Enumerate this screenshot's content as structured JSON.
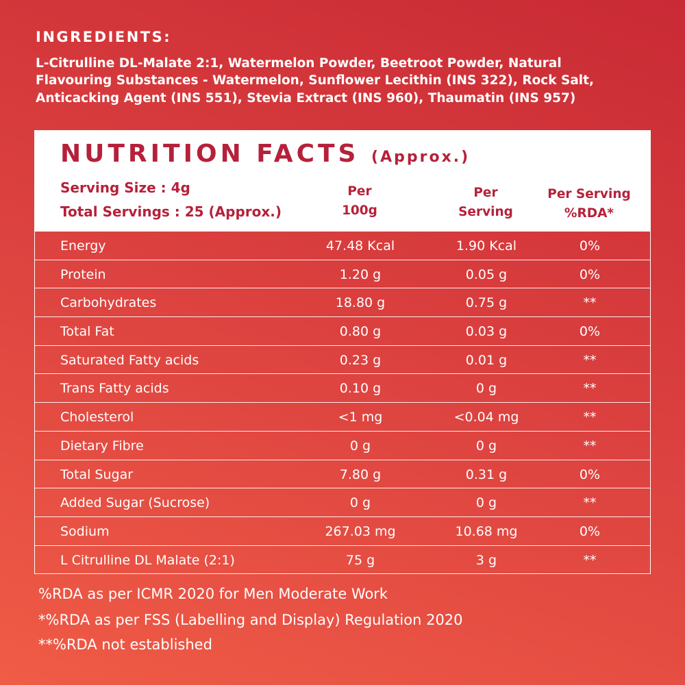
{
  "ingredients": {
    "heading": "INGREDIENTS:",
    "lines": [
      "L-Citrulline DL-Malate 2:1, Watermelon Powder, Beetroot Powder, Natural",
      "Flavouring Substances - Watermelon, Sunflower Lecithin (INS 322), Rock Salt,",
      "Anticacking Agent (INS 551), Stevia Extract (INS 960), Thaumatin (INS 957)"
    ]
  },
  "nutrition": {
    "title": "NUTRITION FACTS",
    "title_note": "(Approx.)",
    "serving_size": "Serving Size : 4g",
    "total_servings": "Total Servings : 25 (Approx.)",
    "columns": [
      [
        "Per",
        "100g"
      ],
      [
        "Per",
        "Serving"
      ],
      [
        "Per Serving",
        "%RDA*"
      ]
    ],
    "rows": [
      [
        "Energy",
        "47.48 Kcal",
        "1.90 Kcal",
        "0%"
      ],
      [
        "Protein",
        "1.20 g",
        "0.05 g",
        "0%"
      ],
      [
        "Carbohydrates",
        "18.80 g",
        "0.75 g",
        "**"
      ],
      [
        "Total Fat",
        "0.80 g",
        "0.03 g",
        "0%"
      ],
      [
        "Saturated Fatty acids",
        "0.23 g",
        "0.01 g",
        "**"
      ],
      [
        "Trans Fatty acids",
        "0.10 g",
        "0 g",
        "**"
      ],
      [
        "Cholesterol",
        "<1 mg",
        "<0.04 mg",
        "**"
      ],
      [
        "Dietary Fibre",
        "0 g",
        "0 g",
        "**"
      ],
      [
        "Total Sugar",
        "7.80 g",
        "0.31 g",
        "0%"
      ],
      [
        "Added Sugar (Sucrose)",
        "0 g",
        "0 g",
        "**"
      ],
      [
        "Sodium",
        "267.03 mg",
        "10.68 mg",
        "0%"
      ],
      [
        "L Citrulline DL Malate (2:1)",
        "75 g",
        "3 g",
        "**"
      ]
    ]
  },
  "footnotes": [
    "%RDA as per ICMR 2020 for Men Moderate Work",
    "*%RDA as per FSS (Labelling and Display) Regulation 2020",
    "**%RDA not established"
  ]
}
